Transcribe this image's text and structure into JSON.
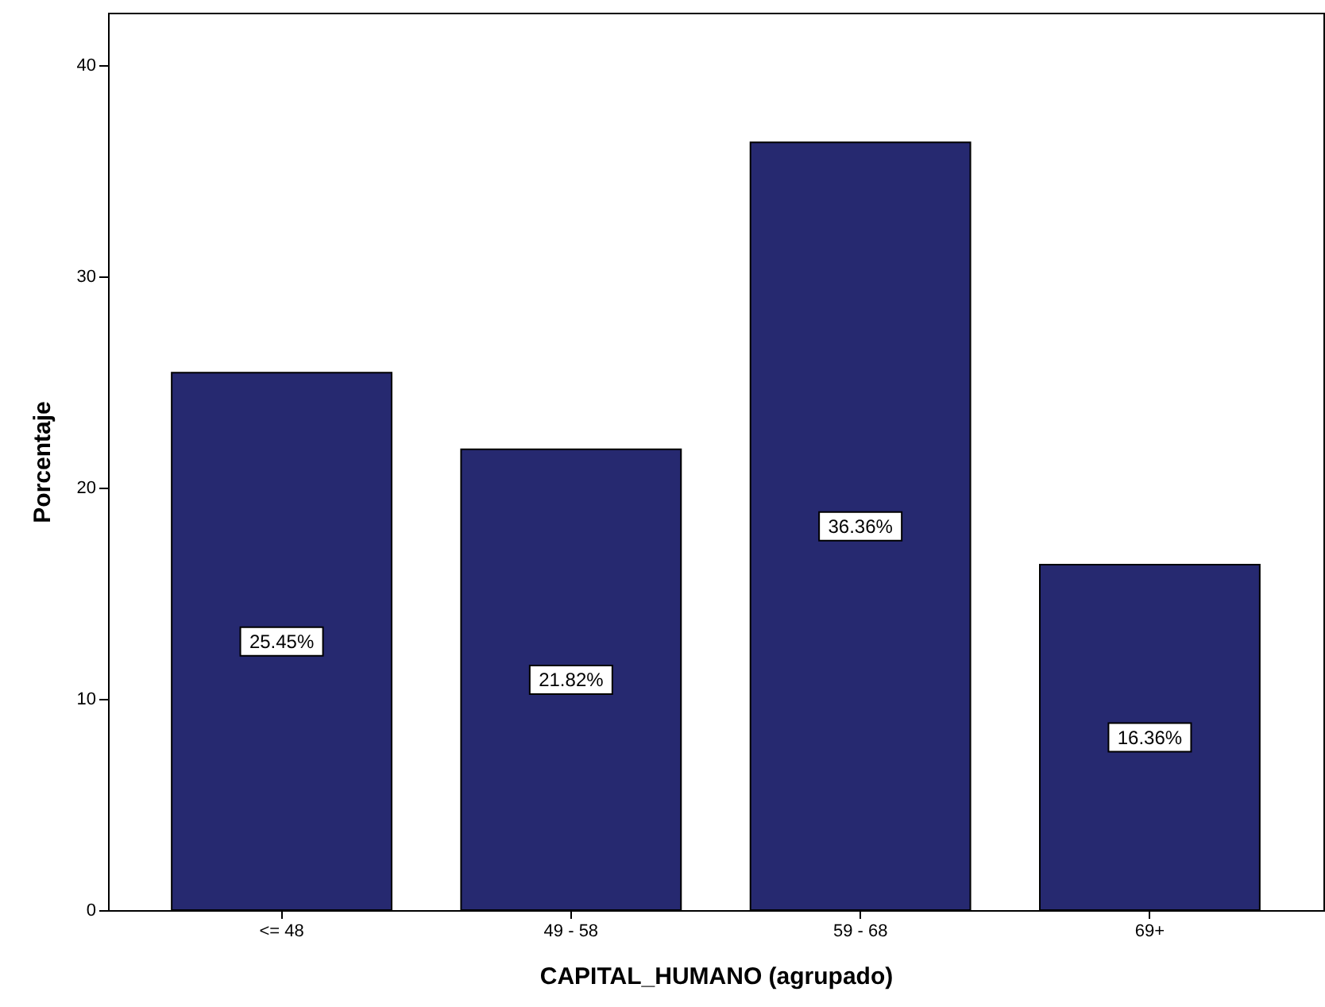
{
  "chart_data": {
    "type": "bar",
    "categories": [
      "<= 48",
      "49 - 58",
      "59 - 68",
      "69+"
    ],
    "values": [
      25.45,
      21.82,
      36.36,
      16.36
    ],
    "color": "#262970",
    "value_labels": [
      "25.45%",
      "21.82%",
      "36.36%",
      "16.36%"
    ],
    "xlabel": "CAPITAL_HUMANO (agrupado)",
    "ylabel": "Porcentaje",
    "ylim": [
      0,
      42.5
    ],
    "yticks": [
      0,
      10,
      20,
      30,
      40
    ],
    "grid": false
  }
}
